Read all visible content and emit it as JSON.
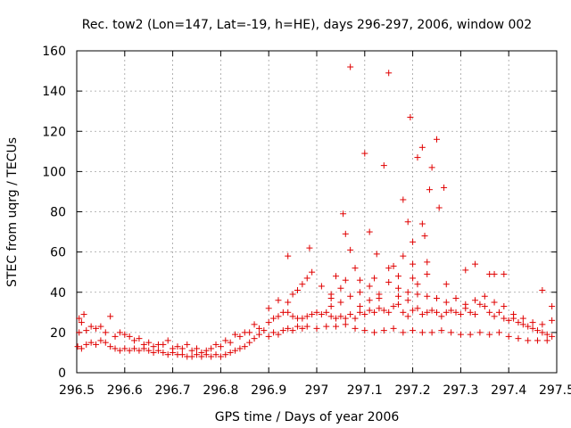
{
  "chart_data": {
    "type": "scatter",
    "title": "Rec. tow2 (Lon=147, Lat=-19, h=HE), days 296-297, 2006, window 002",
    "xlabel": "GPS time / Days of year 2006",
    "ylabel": "STEC from uqrg / TECUs",
    "xlim": [
      296.5,
      297.5
    ],
    "ylim": [
      0,
      160
    ],
    "xticks": [
      296.5,
      296.6,
      296.7,
      296.8,
      296.9,
      297.0,
      297.1,
      297.2,
      297.3,
      297.4,
      297.5
    ],
    "xtick_labels": [
      "296.5",
      "296.6",
      "296.7",
      "296.8",
      "296.9",
      "297",
      "297.1",
      "297.2",
      "297.3",
      "297.4",
      "297.5"
    ],
    "yticks": [
      0,
      20,
      40,
      60,
      80,
      100,
      120,
      140,
      160
    ],
    "ytick_labels": [
      "0",
      "20",
      "40",
      "60",
      "80",
      "100",
      "120",
      "140",
      "160"
    ],
    "grid": true,
    "marker": "+",
    "color": "#e00000",
    "series": [
      {
        "name": "STEC",
        "points": [
          [
            296.502,
            13
          ],
          [
            296.51,
            12
          ],
          [
            296.52,
            14
          ],
          [
            296.53,
            15
          ],
          [
            296.54,
            14
          ],
          [
            296.55,
            16
          ],
          [
            296.56,
            15
          ],
          [
            296.57,
            13
          ],
          [
            296.58,
            12
          ],
          [
            296.59,
            11
          ],
          [
            296.6,
            12
          ],
          [
            296.61,
            11
          ],
          [
            296.62,
            12
          ],
          [
            296.63,
            11
          ],
          [
            296.64,
            12
          ],
          [
            296.65,
            11
          ],
          [
            296.66,
            10
          ],
          [
            296.67,
            11
          ],
          [
            296.68,
            10
          ],
          [
            296.69,
            9
          ],
          [
            296.7,
            10
          ],
          [
            296.71,
            9
          ],
          [
            296.72,
            9
          ],
          [
            296.73,
            8
          ],
          [
            296.74,
            8
          ],
          [
            296.75,
            9
          ],
          [
            296.76,
            8
          ],
          [
            296.77,
            9
          ],
          [
            296.78,
            8
          ],
          [
            296.79,
            9
          ],
          [
            296.8,
            8
          ],
          [
            296.81,
            9
          ],
          [
            296.82,
            10
          ],
          [
            296.83,
            11
          ],
          [
            296.84,
            12
          ],
          [
            296.85,
            13
          ],
          [
            296.86,
            15
          ],
          [
            296.87,
            17
          ],
          [
            296.88,
            19
          ],
          [
            296.89,
            21
          ],
          [
            296.505,
            20
          ],
          [
            296.51,
            25
          ],
          [
            296.52,
            21
          ],
          [
            296.54,
            22
          ],
          [
            296.56,
            20
          ],
          [
            296.58,
            18
          ],
          [
            296.6,
            19
          ],
          [
            296.62,
            16
          ],
          [
            296.64,
            14
          ],
          [
            296.66,
            13
          ],
          [
            296.68,
            14
          ],
          [
            296.7,
            12
          ],
          [
            296.72,
            12
          ],
          [
            296.74,
            11
          ],
          [
            296.76,
            10
          ],
          [
            296.78,
            12
          ],
          [
            296.8,
            13
          ],
          [
            296.82,
            15
          ],
          [
            296.84,
            18
          ],
          [
            296.86,
            20
          ],
          [
            296.88,
            22
          ],
          [
            296.505,
            27
          ],
          [
            296.515,
            29
          ],
          [
            296.53,
            23
          ],
          [
            296.55,
            23
          ],
          [
            296.57,
            28
          ],
          [
            296.59,
            20
          ],
          [
            296.61,
            18
          ],
          [
            296.63,
            17
          ],
          [
            296.65,
            15
          ],
          [
            296.67,
            14
          ],
          [
            296.69,
            16
          ],
          [
            296.71,
            13
          ],
          [
            296.73,
            14
          ],
          [
            296.75,
            12
          ],
          [
            296.77,
            11
          ],
          [
            296.79,
            14
          ],
          [
            296.81,
            16
          ],
          [
            296.83,
            19
          ],
          [
            296.85,
            20
          ],
          [
            296.87,
            24
          ],
          [
            296.9,
            25
          ],
          [
            296.91,
            27
          ],
          [
            296.92,
            28
          ],
          [
            296.93,
            30
          ],
          [
            296.94,
            30
          ],
          [
            296.95,
            28
          ],
          [
            296.96,
            27
          ],
          [
            296.97,
            27
          ],
          [
            296.98,
            28
          ],
          [
            296.99,
            29
          ],
          [
            297.0,
            30
          ],
          [
            297.01,
            29
          ],
          [
            297.02,
            30
          ],
          [
            297.03,
            28
          ],
          [
            297.04,
            27
          ],
          [
            297.05,
            28
          ],
          [
            297.06,
            27
          ],
          [
            297.07,
            29
          ],
          [
            297.08,
            27
          ],
          [
            297.09,
            30
          ],
          [
            297.1,
            29
          ],
          [
            297.11,
            31
          ],
          [
            297.12,
            30
          ],
          [
            297.13,
            32
          ],
          [
            297.14,
            31
          ],
          [
            297.15,
            30
          ],
          [
            297.16,
            33
          ],
          [
            297.17,
            34
          ],
          [
            297.18,
            30
          ],
          [
            297.19,
            28
          ],
          [
            297.2,
            31
          ],
          [
            297.21,
            32
          ],
          [
            297.22,
            29
          ],
          [
            297.23,
            30
          ],
          [
            297.24,
            31
          ],
          [
            297.25,
            30
          ],
          [
            297.26,
            28
          ],
          [
            297.27,
            30
          ],
          [
            297.28,
            31
          ],
          [
            297.29,
            30
          ],
          [
            297.3,
            29
          ],
          [
            297.31,
            32
          ],
          [
            297.32,
            30
          ],
          [
            297.33,
            29
          ],
          [
            297.34,
            34
          ],
          [
            297.35,
            33
          ],
          [
            297.36,
            30
          ],
          [
            297.37,
            28
          ],
          [
            297.38,
            30
          ],
          [
            297.39,
            27
          ],
          [
            297.4,
            26
          ],
          [
            297.41,
            27
          ],
          [
            297.42,
            25
          ],
          [
            297.43,
            24
          ],
          [
            297.44,
            23
          ],
          [
            297.45,
            22
          ],
          [
            297.46,
            21
          ],
          [
            297.47,
            20
          ],
          [
            297.48,
            19
          ],
          [
            297.49,
            18
          ],
          [
            296.9,
            18
          ],
          [
            296.91,
            20
          ],
          [
            296.92,
            19
          ],
          [
            296.93,
            21
          ],
          [
            296.94,
            22
          ],
          [
            296.95,
            21
          ],
          [
            296.96,
            23
          ],
          [
            296.97,
            22
          ],
          [
            296.98,
            23
          ],
          [
            297.0,
            22
          ],
          [
            297.02,
            23
          ],
          [
            297.04,
            23
          ],
          [
            297.06,
            24
          ],
          [
            297.08,
            22
          ],
          [
            297.1,
            21
          ],
          [
            297.12,
            20
          ],
          [
            297.14,
            21
          ],
          [
            297.16,
            22
          ],
          [
            297.18,
            20
          ],
          [
            297.2,
            21
          ],
          [
            297.22,
            20
          ],
          [
            297.24,
            20
          ],
          [
            297.26,
            21
          ],
          [
            297.28,
            20
          ],
          [
            297.3,
            19
          ],
          [
            297.32,
            19
          ],
          [
            297.34,
            20
          ],
          [
            297.36,
            19
          ],
          [
            297.38,
            20
          ],
          [
            297.4,
            18
          ],
          [
            297.42,
            17
          ],
          [
            297.44,
            16
          ],
          [
            297.46,
            16
          ],
          [
            297.48,
            16
          ],
          [
            296.9,
            32
          ],
          [
            296.92,
            36
          ],
          [
            296.94,
            35
          ],
          [
            296.95,
            39
          ],
          [
            296.96,
            41
          ],
          [
            296.97,
            44
          ],
          [
            296.98,
            47
          ],
          [
            296.99,
            50
          ],
          [
            297.01,
            43
          ],
          [
            297.03,
            37
          ],
          [
            297.05,
            42
          ],
          [
            297.07,
            38
          ],
          [
            297.09,
            40
          ],
          [
            297.11,
            43
          ],
          [
            297.13,
            39
          ],
          [
            297.15,
            45
          ],
          [
            297.17,
            42
          ],
          [
            297.19,
            40
          ],
          [
            297.21,
            39
          ],
          [
            297.23,
            38
          ],
          [
            297.25,
            37
          ],
          [
            297.27,
            35
          ],
          [
            297.29,
            37
          ],
          [
            297.31,
            34
          ],
          [
            297.33,
            36
          ],
          [
            297.35,
            38
          ],
          [
            297.37,
            35
          ],
          [
            297.39,
            33
          ],
          [
            297.41,
            29
          ],
          [
            297.43,
            27
          ],
          [
            297.45,
            25
          ],
          [
            297.47,
            24
          ],
          [
            297.49,
            26
          ],
          [
            296.94,
            58
          ],
          [
            296.985,
            62
          ],
          [
            297.04,
            48
          ],
          [
            297.06,
            69
          ],
          [
            297.055,
            79
          ],
          [
            297.07,
            61
          ],
          [
            297.08,
            52
          ],
          [
            297.1,
            109
          ],
          [
            297.11,
            70
          ],
          [
            297.125,
            59
          ],
          [
            297.14,
            103
          ],
          [
            297.16,
            53
          ],
          [
            297.17,
            48
          ],
          [
            297.18,
            86
          ],
          [
            297.19,
            75
          ],
          [
            297.195,
            127
          ],
          [
            297.2,
            65
          ],
          [
            297.21,
            107
          ],
          [
            297.22,
            112
          ],
          [
            297.22,
            74
          ],
          [
            297.225,
            68
          ],
          [
            297.235,
            91
          ],
          [
            297.24,
            102
          ],
          [
            297.25,
            116
          ],
          [
            297.255,
            82
          ],
          [
            297.265,
            92
          ],
          [
            297.27,
            44
          ],
          [
            297.31,
            51
          ],
          [
            297.33,
            54
          ],
          [
            297.36,
            49
          ],
          [
            297.37,
            49
          ],
          [
            297.39,
            49
          ],
          [
            297.47,
            41
          ],
          [
            297.49,
            33
          ],
          [
            297.07,
            152
          ],
          [
            297.15,
            149
          ],
          [
            297.03,
            33
          ],
          [
            297.05,
            35
          ],
          [
            297.09,
            33
          ],
          [
            297.11,
            36
          ],
          [
            297.13,
            37
          ],
          [
            297.17,
            38
          ],
          [
            297.19,
            36
          ],
          [
            297.21,
            44
          ],
          [
            297.23,
            49
          ],
          [
            297.15,
            52
          ],
          [
            297.12,
            47
          ],
          [
            297.09,
            46
          ],
          [
            297.06,
            46
          ],
          [
            297.03,
            39
          ],
          [
            297.2,
            54
          ],
          [
            297.23,
            55
          ],
          [
            297.18,
            58
          ],
          [
            297.2,
            47
          ]
        ]
      }
    ]
  }
}
